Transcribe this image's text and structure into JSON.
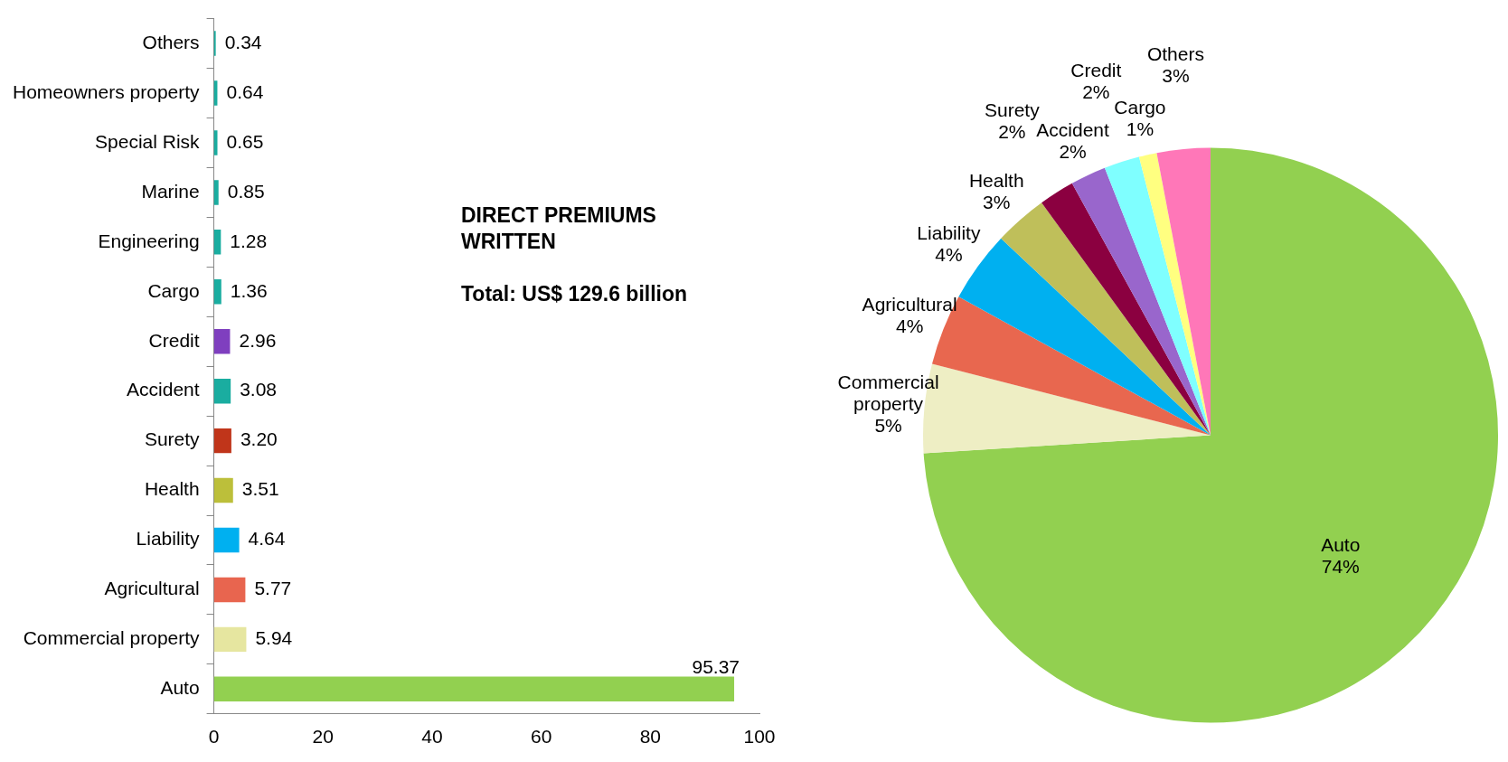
{
  "chart_data": [
    {
      "type": "bar",
      "orientation": "horizontal",
      "categories": [
        "Others",
        "Homeowners property",
        "Special Risk",
        "Marine",
        "Engineering",
        "Cargo",
        "Credit",
        "Accident",
        "Surety",
        "Health",
        "Liability",
        "Agricultural",
        "Commercial property",
        "Auto"
      ],
      "values": [
        0.34,
        0.64,
        0.65,
        0.85,
        1.28,
        1.36,
        2.96,
        3.08,
        3.2,
        3.51,
        4.64,
        5.77,
        5.94,
        95.37
      ],
      "value_labels": [
        "0.34",
        "0.64",
        "0.65",
        "0.85",
        "1.28",
        "1.36",
        "2.96",
        "3.08",
        "3.20",
        "3.51",
        "4.64",
        "5.77",
        "5.94",
        "95.37"
      ],
      "colors": [
        "#1aada0",
        "#1aada0",
        "#1aada0",
        "#1aada0",
        "#1aada0",
        "#1aada0",
        "#7f3fbf",
        "#1aada0",
        "#c0351a",
        "#bcbf3a",
        "#00b0f0",
        "#e8654f",
        "#e6e6a0",
        "#92d050"
      ],
      "xlim": [
        0,
        100
      ],
      "xticks": [
        0,
        20,
        40,
        60,
        80,
        100
      ],
      "grid": false,
      "legend": false,
      "annotations": [
        "DIRECT PREMIUMS WRITTEN",
        "Total: US$ 129.6 billion"
      ]
    },
    {
      "type": "pie",
      "categories": [
        "Auto",
        "Commercial property",
        "Agricultural",
        "Liability",
        "Health",
        "Surety",
        "Accident",
        "Credit",
        "Cargo",
        "Others"
      ],
      "values": [
        74,
        5,
        4,
        4,
        3,
        2,
        2,
        2,
        1,
        3
      ],
      "value_labels": [
        "74%",
        "5%",
        "4%",
        "4%",
        "3%",
        "2%",
        "2%",
        "2%",
        "1%",
        "3%"
      ],
      "colors": [
        "#92d050",
        "#eeeec4",
        "#e8674f",
        "#00b0f0",
        "#bfbf5a",
        "#8b0040",
        "#9966cc",
        "#7fffff",
        "#ffff80",
        "#ff77b8"
      ],
      "legend": false
    }
  ]
}
